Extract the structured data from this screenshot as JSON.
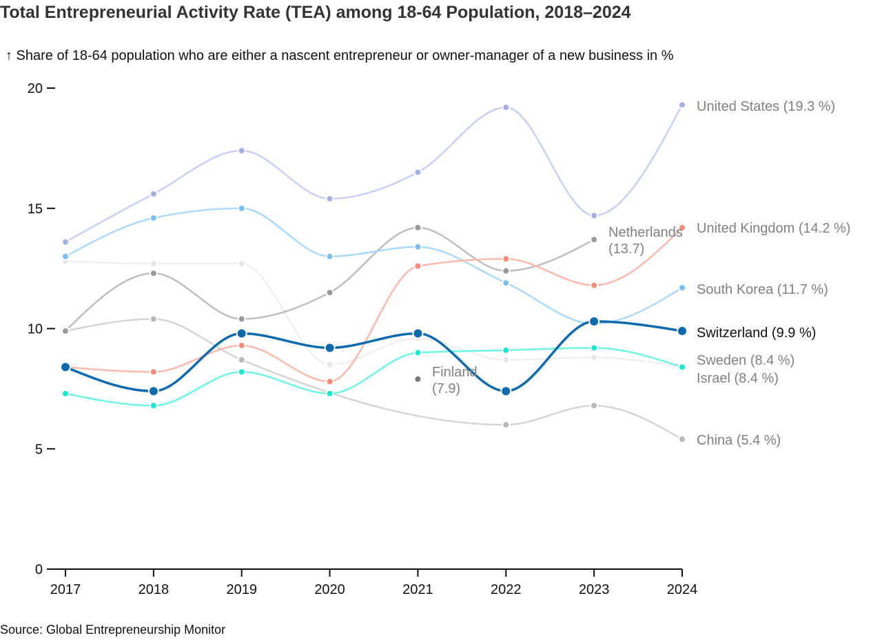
{
  "title": "Total Entrepreneurial Activity Rate (TEA) among 18-64 Population, 2018–2024",
  "subtitle": "↑ Share of 18-64 population who are either a nascent entrepreneur or owner-manager of a new business in %",
  "source": "Source: Global Entrepreneurship Monitor",
  "chart_data": {
    "type": "line",
    "title": "Total Entrepreneurial Activity Rate (TEA) among 18-64 Population, 2018–2024",
    "ylabel": "Share of 18-64 population who are either a nascent entrepreneur or owner-manager of a new business in %",
    "xlabel": "",
    "x": [
      2017,
      2018,
      2019,
      2020,
      2021,
      2022,
      2023,
      2024
    ],
    "x_ticks": [
      "2017",
      "2018",
      "2019",
      "2020",
      "2021",
      "2022",
      "2023",
      "2024"
    ],
    "y_ticks": [
      "0",
      "5",
      "10",
      "15",
      "20"
    ],
    "ylim": [
      0,
      20
    ],
    "grid": false,
    "legend": "direct-labels-right",
    "series": [
      {
        "name": "Israel",
        "label": "Israel (8.4 %)",
        "line_color": "#efefef",
        "dot_color": "#e6e6e6",
        "highlight": false,
        "values": [
          12.8,
          12.7,
          12.7,
          8.5,
          9.6,
          8.7,
          8.8,
          8.4
        ]
      },
      {
        "name": "China",
        "label": "China (5.4 %)",
        "line_color": "#d4d4d4",
        "dot_color": "#b8b8b8",
        "highlight": false,
        "values": [
          9.9,
          10.4,
          8.7,
          null,
          null,
          6.0,
          6.8,
          5.4
        ]
      },
      {
        "name": "Netherlands",
        "label": "Netherlands",
        "label_value": "(13.7)",
        "line_color": "#bdbdbd",
        "dot_color": "#999999",
        "highlight": false,
        "values": [
          9.9,
          12.3,
          10.4,
          11.5,
          14.2,
          12.4,
          13.7,
          null
        ]
      },
      {
        "name": "United States",
        "label": "United States (19.3 %)",
        "line_color": "#c8cff3",
        "dot_color": "#a5aee6",
        "highlight": false,
        "values": [
          13.6,
          15.6,
          17.4,
          15.4,
          16.5,
          19.2,
          14.7,
          19.3
        ]
      },
      {
        "name": "South Korea",
        "label": "South Korea (11.7 %)",
        "line_color": "#acd9fb",
        "dot_color": "#78bff7",
        "highlight": false,
        "values": [
          13.0,
          14.6,
          15.0,
          13.0,
          13.4,
          11.9,
          10.2,
          11.7
        ]
      },
      {
        "name": "United Kingdom",
        "label": "United Kingdom (14.2 %)",
        "line_color": "#fbb8ac",
        "dot_color": "#f88a76",
        "highlight": false,
        "values": [
          8.4,
          8.2,
          9.3,
          7.8,
          12.6,
          12.9,
          11.8,
          14.2
        ]
      },
      {
        "name": "Sweden",
        "label": "Sweden (8.4 %)",
        "line_color": "#6ef5e2",
        "dot_color": "#14ecd2",
        "highlight": false,
        "values": [
          7.3,
          6.8,
          8.2,
          7.3,
          9.0,
          9.1,
          9.2,
          8.4
        ]
      },
      {
        "name": "Switzerland",
        "label": "Switzerland (9.9 %)",
        "line_color": "#0a6aad",
        "dot_color": "#0a6aad",
        "highlight": true,
        "values": [
          8.4,
          7.4,
          9.8,
          9.2,
          9.8,
          7.4,
          10.3,
          9.9
        ]
      },
      {
        "name": "Finland",
        "label": "Finland",
        "label_value": "(7.9)",
        "line_color": "#777777",
        "dot_color": "#777777",
        "highlight": false,
        "values": [
          null,
          null,
          null,
          null,
          7.9,
          null,
          null,
          null
        ]
      }
    ],
    "china_2020_interpolated_note": ""
  },
  "colors": {
    "label_muted": "#808080",
    "label_highlight": "#111111",
    "axis": "#111111"
  }
}
